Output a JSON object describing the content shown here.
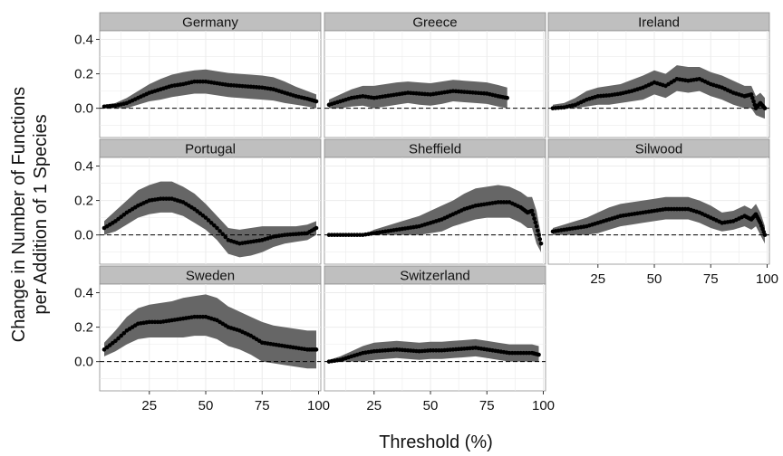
{
  "chart_data": {
    "type": "line",
    "xlabel": "Threshold (%)",
    "ylabel_line1": "Change in Number of Functions",
    "ylabel_line2": "per Addition of 1 Species",
    "xlim": [
      3,
      101
    ],
    "ylim": [
      -0.17,
      0.45
    ],
    "x_ticks": [
      25,
      50,
      75,
      100
    ],
    "x_tick_labels": [
      "25",
      "50",
      "75",
      "100"
    ],
    "y_ticks": [
      0.0,
      0.2,
      0.4
    ],
    "y_tick_labels": [
      "0.0",
      "0.2",
      "0.4"
    ],
    "reference_line": 0,
    "grid": true,
    "colors": {
      "ribbon": "#666666",
      "point": "#000000",
      "strip": "#bfbfbf",
      "grid": "#ebebeb"
    },
    "panels": [
      {
        "name": "Germany",
        "x": [
          5,
          10,
          15,
          20,
          25,
          30,
          35,
          40,
          45,
          50,
          55,
          60,
          65,
          70,
          75,
          80,
          85,
          90,
          95,
          99
        ],
        "y": [
          0.01,
          0.015,
          0.03,
          0.06,
          0.09,
          0.11,
          0.13,
          0.14,
          0.155,
          0.155,
          0.145,
          0.135,
          0.13,
          0.125,
          0.12,
          0.11,
          0.09,
          0.07,
          0.055,
          0.04
        ],
        "lower": [
          0.0,
          0.0,
          0.0,
          0.02,
          0.04,
          0.05,
          0.065,
          0.075,
          0.085,
          0.085,
          0.075,
          0.065,
          0.06,
          0.055,
          0.05,
          0.045,
          0.03,
          0.02,
          0.01,
          0.0
        ],
        "upper": [
          0.02,
          0.03,
          0.06,
          0.1,
          0.14,
          0.17,
          0.195,
          0.21,
          0.22,
          0.225,
          0.215,
          0.205,
          0.2,
          0.195,
          0.19,
          0.18,
          0.155,
          0.125,
          0.1,
          0.08
        ]
      },
      {
        "name": "Greece",
        "x": [
          5,
          10,
          15,
          20,
          25,
          30,
          35,
          40,
          45,
          50,
          55,
          60,
          65,
          70,
          75,
          80,
          84
        ],
        "y": [
          0.02,
          0.04,
          0.06,
          0.07,
          0.06,
          0.07,
          0.08,
          0.09,
          0.085,
          0.08,
          0.09,
          0.1,
          0.095,
          0.09,
          0.085,
          0.07,
          0.06
        ],
        "lower": [
          0.0,
          0.0,
          0.01,
          0.015,
          0.0,
          0.01,
          0.02,
          0.03,
          0.02,
          0.015,
          0.025,
          0.04,
          0.035,
          0.03,
          0.025,
          0.01,
          0.0
        ],
        "upper": [
          0.05,
          0.08,
          0.11,
          0.13,
          0.13,
          0.14,
          0.15,
          0.155,
          0.15,
          0.145,
          0.155,
          0.165,
          0.16,
          0.155,
          0.15,
          0.135,
          0.12
        ]
      },
      {
        "name": "Ireland",
        "x": [
          5,
          10,
          15,
          20,
          25,
          30,
          35,
          40,
          45,
          50,
          55,
          60,
          65,
          70,
          75,
          80,
          85,
          90,
          93,
          95,
          97,
          99
        ],
        "y": [
          0.0,
          0.005,
          0.02,
          0.05,
          0.07,
          0.075,
          0.085,
          0.1,
          0.12,
          0.15,
          0.13,
          0.17,
          0.16,
          0.17,
          0.14,
          0.12,
          0.09,
          0.07,
          0.08,
          0.0,
          0.03,
          0.0
        ],
        "lower": [
          0.0,
          0.0,
          0.0,
          0.01,
          0.02,
          0.02,
          0.03,
          0.04,
          0.05,
          0.08,
          0.06,
          0.1,
          0.09,
          0.1,
          0.07,
          0.05,
          0.02,
          0.0,
          0.0,
          -0.04,
          -0.05,
          -0.06
        ],
        "upper": [
          0.02,
          0.03,
          0.06,
          0.1,
          0.12,
          0.13,
          0.14,
          0.165,
          0.19,
          0.22,
          0.2,
          0.25,
          0.24,
          0.24,
          0.21,
          0.19,
          0.16,
          0.13,
          0.13,
          0.07,
          0.09,
          0.06
        ]
      },
      {
        "name": "Portugal",
        "x": [
          5,
          10,
          15,
          20,
          25,
          30,
          35,
          40,
          45,
          50,
          55,
          60,
          65,
          70,
          75,
          80,
          85,
          90,
          95,
          99
        ],
        "y": [
          0.04,
          0.08,
          0.13,
          0.17,
          0.2,
          0.21,
          0.21,
          0.19,
          0.15,
          0.1,
          0.04,
          -0.03,
          -0.05,
          -0.04,
          -0.03,
          -0.01,
          0.0,
          0.005,
          0.01,
          0.04
        ],
        "lower": [
          0.0,
          0.02,
          0.06,
          0.1,
          0.12,
          0.13,
          0.13,
          0.11,
          0.07,
          0.03,
          -0.03,
          -0.11,
          -0.13,
          -0.12,
          -0.1,
          -0.07,
          -0.05,
          -0.04,
          -0.03,
          0.0
        ],
        "upper": [
          0.08,
          0.14,
          0.2,
          0.26,
          0.29,
          0.31,
          0.31,
          0.28,
          0.24,
          0.18,
          0.11,
          0.04,
          0.03,
          0.04,
          0.05,
          0.05,
          0.05,
          0.05,
          0.06,
          0.08
        ]
      },
      {
        "name": "Sheffield",
        "x": [
          5,
          10,
          15,
          20,
          25,
          30,
          35,
          40,
          45,
          50,
          55,
          60,
          65,
          70,
          75,
          80,
          85,
          90,
          93,
          95,
          97,
          99
        ],
        "y": [
          0.0,
          0.0,
          0.0,
          0.0,
          0.01,
          0.02,
          0.03,
          0.04,
          0.05,
          0.07,
          0.09,
          0.12,
          0.15,
          0.17,
          0.18,
          0.19,
          0.19,
          0.16,
          0.13,
          0.14,
          0.05,
          -0.05
        ],
        "lower": [
          0.0,
          0.0,
          0.0,
          0.0,
          0.0,
          0.0,
          0.0,
          0.0,
          0.0,
          0.01,
          0.02,
          0.05,
          0.07,
          0.09,
          0.1,
          0.1,
          0.1,
          0.07,
          0.04,
          0.04,
          -0.05,
          -0.1
        ],
        "upper": [
          0.0,
          0.0,
          0.0,
          0.0,
          0.03,
          0.05,
          0.07,
          0.09,
          0.11,
          0.14,
          0.17,
          0.2,
          0.24,
          0.27,
          0.28,
          0.29,
          0.28,
          0.25,
          0.22,
          0.22,
          0.14,
          0.0
        ]
      },
      {
        "name": "Silwood",
        "x": [
          5,
          10,
          15,
          20,
          25,
          30,
          35,
          40,
          45,
          50,
          55,
          60,
          65,
          70,
          75,
          80,
          85,
          90,
          93,
          95,
          97,
          99
        ],
        "y": [
          0.02,
          0.03,
          0.04,
          0.05,
          0.07,
          0.09,
          0.11,
          0.12,
          0.13,
          0.14,
          0.15,
          0.15,
          0.15,
          0.13,
          0.1,
          0.07,
          0.08,
          0.11,
          0.09,
          0.12,
          0.07,
          0.0
        ],
        "lower": [
          0.0,
          0.0,
          0.0,
          0.0,
          0.01,
          0.03,
          0.05,
          0.06,
          0.07,
          0.08,
          0.09,
          0.09,
          0.09,
          0.07,
          0.04,
          0.02,
          0.03,
          0.05,
          0.03,
          0.05,
          0.0,
          -0.05
        ],
        "upper": [
          0.04,
          0.06,
          0.08,
          0.1,
          0.13,
          0.16,
          0.18,
          0.19,
          0.2,
          0.21,
          0.22,
          0.22,
          0.22,
          0.2,
          0.17,
          0.13,
          0.14,
          0.17,
          0.15,
          0.18,
          0.13,
          0.05
        ]
      },
      {
        "name": "Sweden",
        "x": [
          5,
          10,
          15,
          20,
          25,
          30,
          35,
          40,
          45,
          50,
          55,
          60,
          65,
          70,
          75,
          80,
          85,
          90,
          95,
          99
        ],
        "y": [
          0.07,
          0.12,
          0.18,
          0.22,
          0.23,
          0.23,
          0.24,
          0.25,
          0.26,
          0.26,
          0.24,
          0.2,
          0.18,
          0.15,
          0.11,
          0.1,
          0.09,
          0.08,
          0.07,
          0.07
        ],
        "lower": [
          0.03,
          0.06,
          0.1,
          0.13,
          0.14,
          0.14,
          0.14,
          0.14,
          0.15,
          0.15,
          0.13,
          0.09,
          0.07,
          0.04,
          0.0,
          -0.01,
          -0.02,
          -0.03,
          -0.04,
          -0.04
        ],
        "upper": [
          0.11,
          0.18,
          0.26,
          0.31,
          0.33,
          0.34,
          0.35,
          0.37,
          0.38,
          0.39,
          0.37,
          0.32,
          0.29,
          0.26,
          0.23,
          0.21,
          0.2,
          0.19,
          0.18,
          0.18
        ]
      },
      {
        "name": "Switzerland",
        "x": [
          5,
          10,
          15,
          20,
          25,
          30,
          35,
          40,
          45,
          50,
          55,
          60,
          65,
          70,
          75,
          80,
          85,
          90,
          95,
          98
        ],
        "y": [
          0.0,
          0.01,
          0.03,
          0.05,
          0.06,
          0.065,
          0.07,
          0.065,
          0.06,
          0.065,
          0.065,
          0.07,
          0.075,
          0.08,
          0.07,
          0.06,
          0.05,
          0.05,
          0.05,
          0.04
        ],
        "lower": [
          0.0,
          0.0,
          0.0,
          0.0,
          0.01,
          0.015,
          0.02,
          0.015,
          0.01,
          0.015,
          0.015,
          0.02,
          0.025,
          0.03,
          0.02,
          0.01,
          0.0,
          0.0,
          0.0,
          0.0
        ],
        "upper": [
          0.01,
          0.03,
          0.06,
          0.09,
          0.11,
          0.115,
          0.12,
          0.115,
          0.11,
          0.115,
          0.115,
          0.12,
          0.125,
          0.13,
          0.12,
          0.11,
          0.1,
          0.1,
          0.1,
          0.09
        ]
      }
    ]
  }
}
